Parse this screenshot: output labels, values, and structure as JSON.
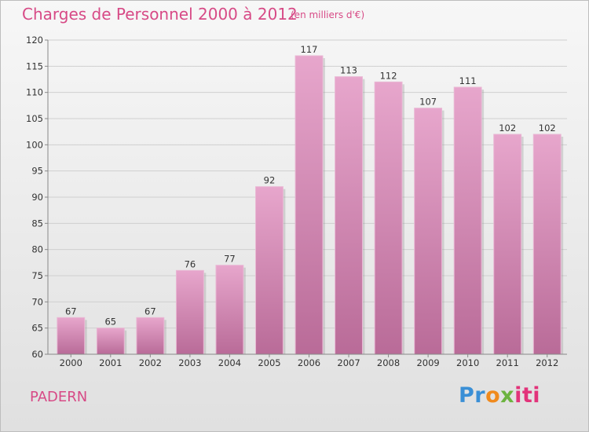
{
  "title": "Charges de Personnel 2000 à 2012",
  "subtitle": "(en milliers d'€)",
  "commune": "PADERN",
  "logo": {
    "p1": "Pr",
    "p2": "o",
    "p3": "x",
    "p4": "iti"
  },
  "colors": {
    "bar": "#d98cb5",
    "accent": "#d74a86"
  },
  "chart_data": {
    "type": "bar",
    "categories": [
      "2000",
      "2001",
      "2002",
      "2003",
      "2004",
      "2005",
      "2006",
      "2007",
      "2008",
      "2009",
      "2010",
      "2011",
      "2012"
    ],
    "values": [
      67,
      65,
      67,
      76,
      77,
      92,
      117,
      113,
      112,
      107,
      111,
      102,
      102
    ],
    "title": "Charges de Personnel 2000 à 2012",
    "ylim": [
      60,
      120
    ],
    "yticks": [
      60,
      65,
      70,
      75,
      80,
      85,
      90,
      95,
      100,
      105,
      110,
      115,
      120
    ],
    "grid": true,
    "data_labels": true
  }
}
